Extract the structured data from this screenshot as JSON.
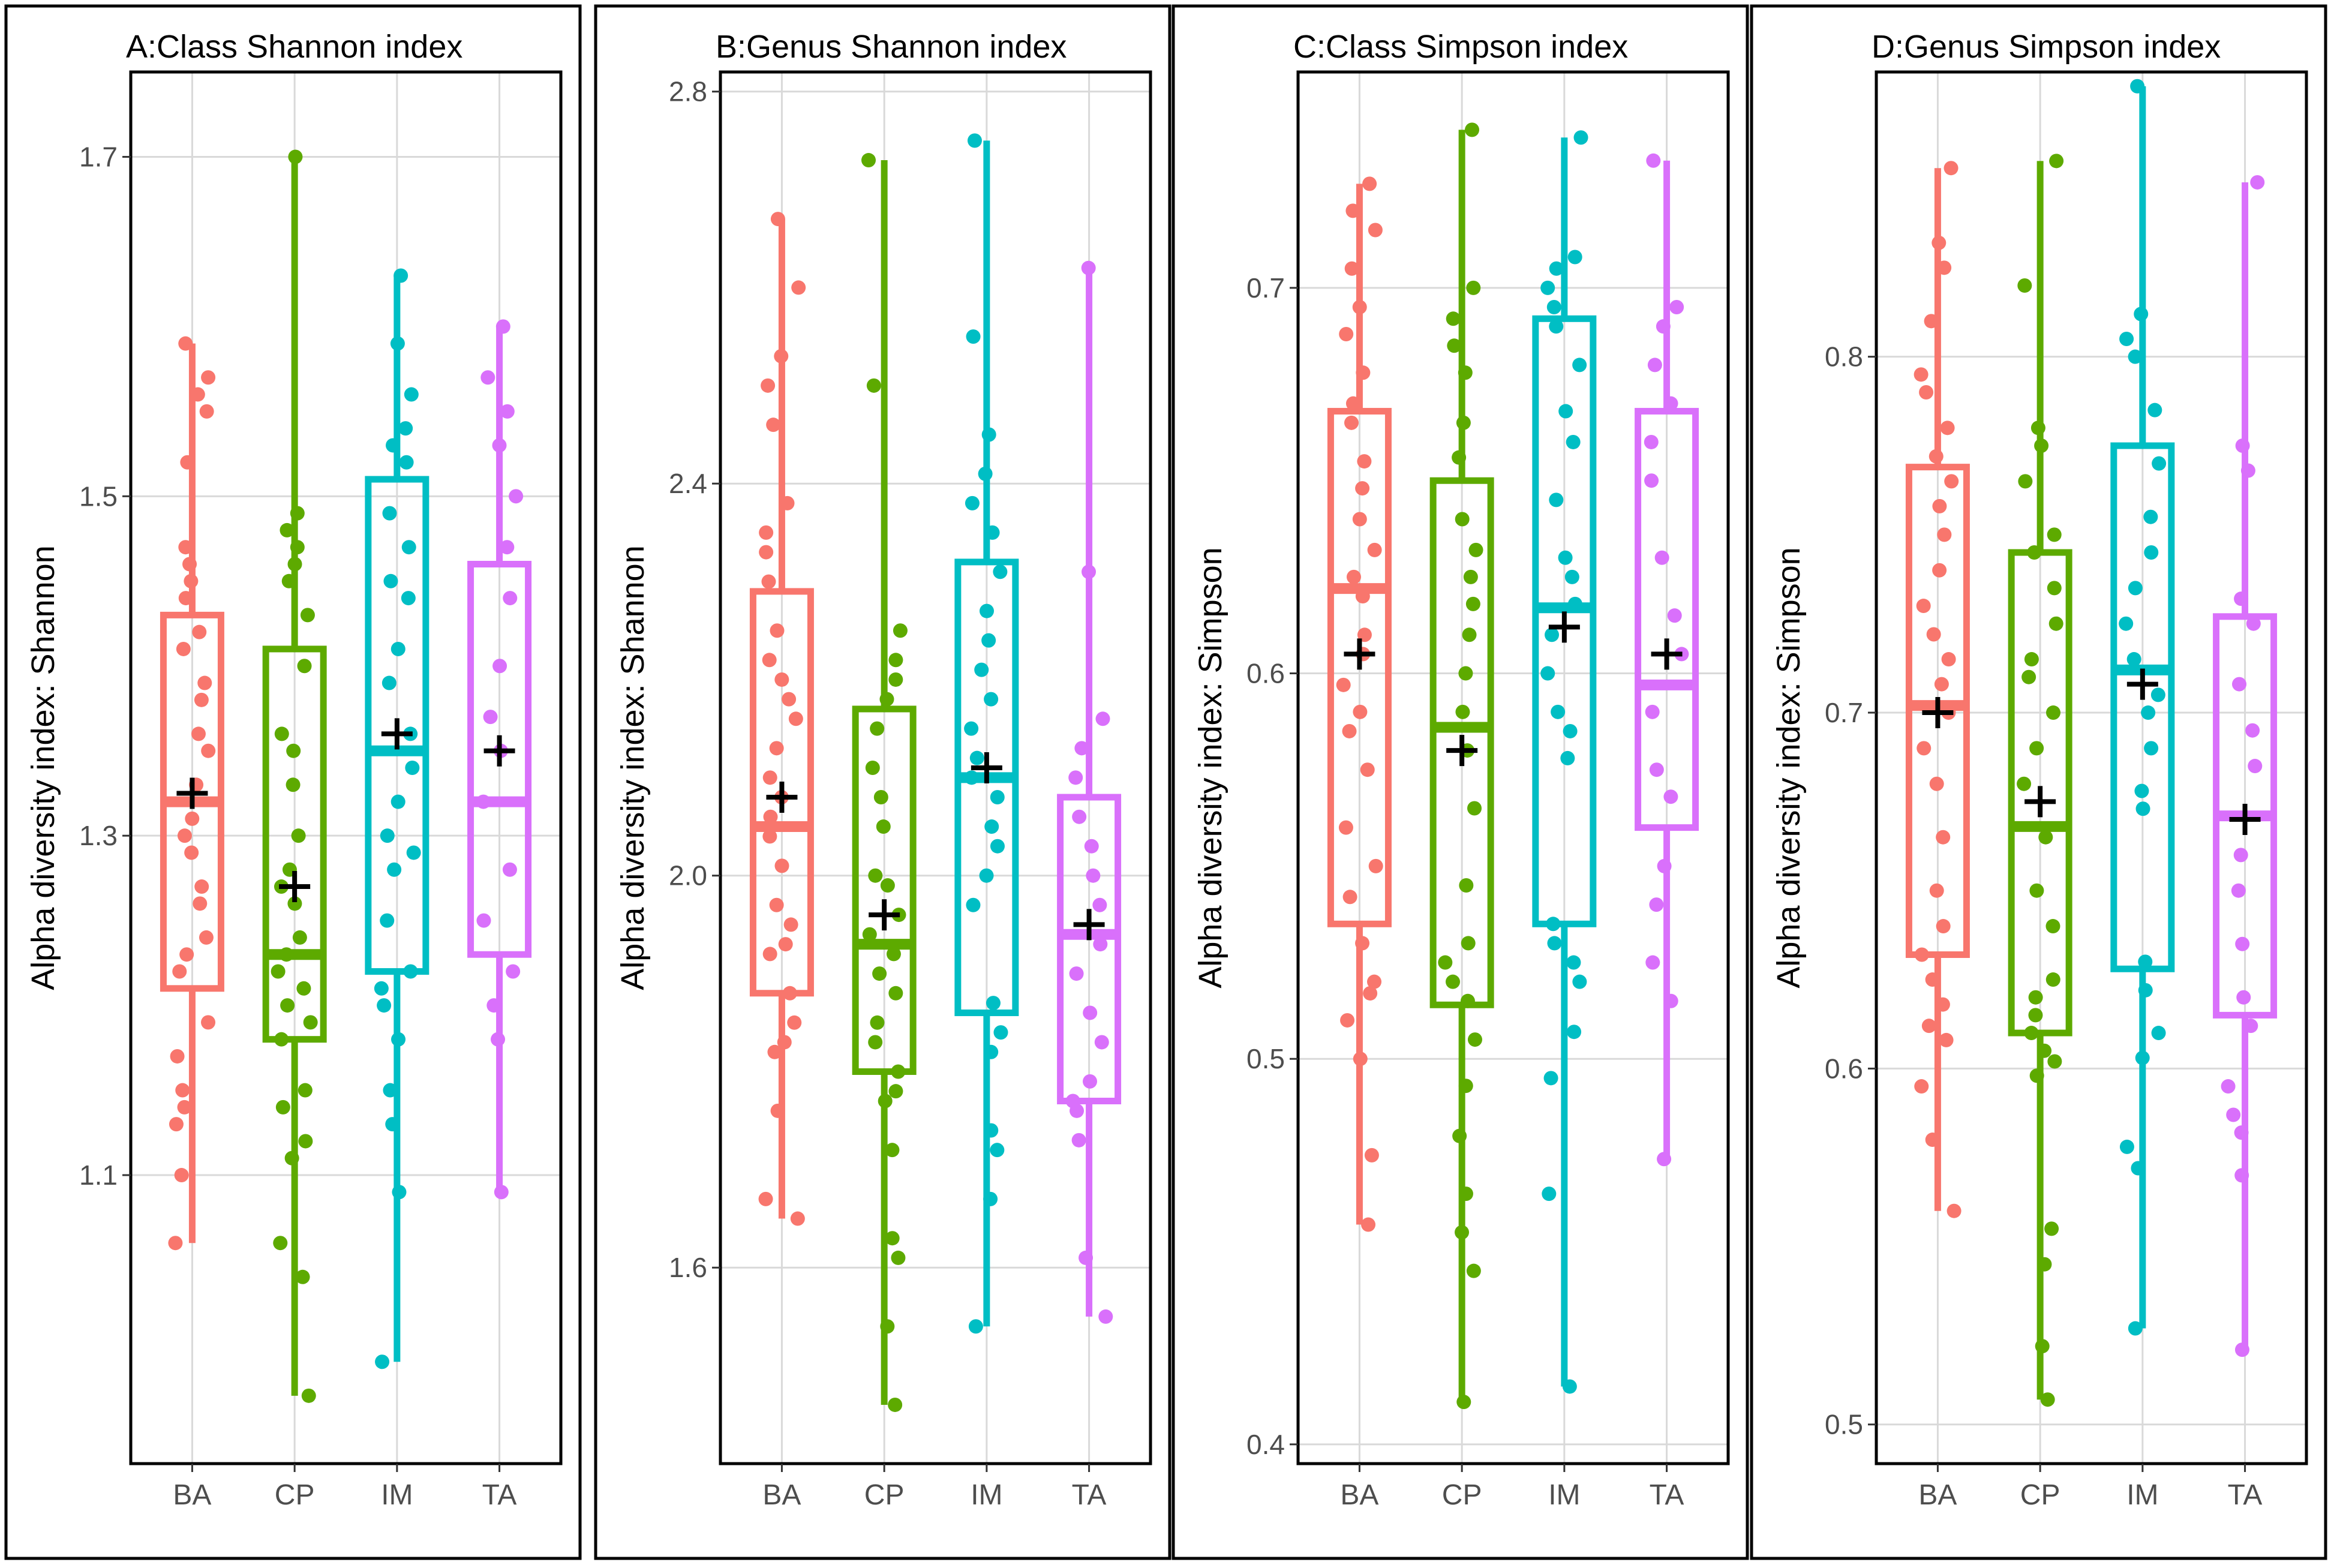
{
  "colors": {
    "BA": "#F8766D",
    "CP": "#5DAA00",
    "IM": "#00BEC4",
    "TA": "#D970FB",
    "mean": "#000000",
    "grid": "#D9D9D9"
  },
  "chart_data": [
    {
      "type": "box",
      "title": "A:Class Shannon index",
      "ylabel": "Alpha diversity index: Shannon",
      "ylim": [
        0.93,
        1.75
      ],
      "yticks": [
        "1.1",
        "1.3",
        "1.5",
        "1.7"
      ],
      "categories": [
        "BA",
        "CP",
        "IM",
        "TA"
      ],
      "boxes": [
        {
          "group": "BA",
          "min": 1.06,
          "q1": 1.21,
          "median": 1.32,
          "q3": 1.43,
          "max": 1.59,
          "mean": 1.325,
          "points": [
            1.06,
            1.1,
            1.13,
            1.14,
            1.15,
            1.17,
            1.19,
            1.22,
            1.23,
            1.24,
            1.26,
            1.27,
            1.29,
            1.3,
            1.31,
            1.33,
            1.35,
            1.36,
            1.38,
            1.39,
            1.41,
            1.42,
            1.44,
            1.45,
            1.46,
            1.47,
            1.52,
            1.55,
            1.56,
            1.57,
            1.59
          ]
        },
        {
          "group": "CP",
          "min": 0.97,
          "q1": 1.18,
          "median": 1.23,
          "q3": 1.41,
          "max": 1.7,
          "mean": 1.27,
          "points": [
            0.97,
            1.04,
            1.06,
            1.11,
            1.12,
            1.14,
            1.15,
            1.18,
            1.19,
            1.2,
            1.21,
            1.22,
            1.23,
            1.24,
            1.26,
            1.27,
            1.28,
            1.3,
            1.33,
            1.35,
            1.36,
            1.4,
            1.43,
            1.45,
            1.46,
            1.47,
            1.48,
            1.49,
            1.7
          ]
        },
        {
          "group": "IM",
          "min": 0.99,
          "q1": 1.22,
          "median": 1.35,
          "q3": 1.51,
          "max": 1.63,
          "mean": 1.36,
          "points": [
            0.99,
            1.09,
            1.13,
            1.15,
            1.18,
            1.2,
            1.21,
            1.22,
            1.25,
            1.28,
            1.29,
            1.3,
            1.32,
            1.34,
            1.36,
            1.39,
            1.41,
            1.44,
            1.45,
            1.47,
            1.49,
            1.52,
            1.53,
            1.54,
            1.56,
            1.59,
            1.63
          ]
        },
        {
          "group": "TA",
          "min": 1.09,
          "q1": 1.23,
          "median": 1.32,
          "q3": 1.46,
          "max": 1.6,
          "mean": 1.35,
          "points": [
            1.09,
            1.18,
            1.2,
            1.22,
            1.25,
            1.28,
            1.32,
            1.35,
            1.37,
            1.4,
            1.44,
            1.47,
            1.5,
            1.53,
            1.55,
            1.57,
            1.6
          ]
        }
      ]
    },
    {
      "type": "box",
      "title": "B:Genus Shannon index",
      "ylabel": "Alpha diversity index: Shannon",
      "ylim": [
        1.4,
        2.82
      ],
      "yticks": [
        "1.6",
        "2.0",
        "2.4",
        "2.8"
      ],
      "categories": [
        "BA",
        "CP",
        "IM",
        "TA"
      ],
      "boxes": [
        {
          "group": "BA",
          "min": 1.65,
          "q1": 1.88,
          "median": 2.05,
          "q3": 2.29,
          "max": 2.67,
          "mean": 2.08,
          "points": [
            1.65,
            1.67,
            1.76,
            1.82,
            1.83,
            1.85,
            1.88,
            1.92,
            1.93,
            1.95,
            1.97,
            2.01,
            2.04,
            2.06,
            2.08,
            2.1,
            2.13,
            2.16,
            2.18,
            2.2,
            2.22,
            2.25,
            2.3,
            2.33,
            2.35,
            2.38,
            2.46,
            2.5,
            2.53,
            2.6,
            2.67
          ]
        },
        {
          "group": "CP",
          "min": 1.46,
          "q1": 1.8,
          "median": 1.93,
          "q3": 2.17,
          "max": 2.73,
          "mean": 1.96,
          "points": [
            1.46,
            1.54,
            1.61,
            1.63,
            1.72,
            1.77,
            1.78,
            1.8,
            1.83,
            1.85,
            1.88,
            1.9,
            1.92,
            1.94,
            1.96,
            1.99,
            2.0,
            2.05,
            2.08,
            2.11,
            2.15,
            2.18,
            2.2,
            2.22,
            2.25,
            2.5,
            2.73
          ]
        },
        {
          "group": "IM",
          "min": 1.54,
          "q1": 1.86,
          "median": 2.1,
          "q3": 2.32,
          "max": 2.75,
          "mean": 2.11,
          "points": [
            1.54,
            1.67,
            1.72,
            1.74,
            1.82,
            1.84,
            1.87,
            1.97,
            2.0,
            2.03,
            2.05,
            2.08,
            2.1,
            2.12,
            2.15,
            2.18,
            2.21,
            2.24,
            2.27,
            2.31,
            2.35,
            2.38,
            2.41,
            2.45,
            2.55,
            2.75
          ]
        },
        {
          "group": "TA",
          "min": 1.55,
          "q1": 1.77,
          "median": 1.94,
          "q3": 2.08,
          "max": 2.62,
          "mean": 1.95,
          "points": [
            1.55,
            1.61,
            1.73,
            1.76,
            1.77,
            1.79,
            1.83,
            1.86,
            1.9,
            1.93,
            1.97,
            2.0,
            2.03,
            2.06,
            2.1,
            2.13,
            2.16,
            2.31,
            2.62
          ]
        }
      ]
    },
    {
      "type": "box",
      "title": "C:Class Simpson index",
      "ylabel": "Alpha diversity index: Simpson",
      "ylim": [
        0.395,
        0.756
      ],
      "yticks": [
        "0.4",
        "0.5",
        "0.6",
        "0.7"
      ],
      "categories": [
        "BA",
        "CP",
        "IM",
        "TA"
      ],
      "boxes": [
        {
          "group": "BA",
          "min": 0.457,
          "q1": 0.535,
          "median": 0.622,
          "q3": 0.668,
          "max": 0.727,
          "mean": 0.605,
          "points": [
            0.457,
            0.475,
            0.5,
            0.51,
            0.517,
            0.52,
            0.53,
            0.542,
            0.55,
            0.56,
            0.575,
            0.585,
            0.59,
            0.597,
            0.605,
            0.61,
            0.62,
            0.625,
            0.632,
            0.64,
            0.648,
            0.655,
            0.665,
            0.67,
            0.678,
            0.688,
            0.695,
            0.705,
            0.715,
            0.72,
            0.727
          ]
        },
        {
          "group": "CP",
          "min": 0.411,
          "q1": 0.514,
          "median": 0.586,
          "q3": 0.65,
          "max": 0.741,
          "mean": 0.58,
          "points": [
            0.411,
            0.445,
            0.455,
            0.465,
            0.48,
            0.493,
            0.505,
            0.515,
            0.52,
            0.525,
            0.53,
            0.545,
            0.565,
            0.58,
            0.59,
            0.6,
            0.61,
            0.618,
            0.625,
            0.632,
            0.64,
            0.656,
            0.665,
            0.678,
            0.685,
            0.692,
            0.7,
            0.741
          ]
        },
        {
          "group": "IM",
          "min": 0.415,
          "q1": 0.535,
          "median": 0.617,
          "q3": 0.692,
          "max": 0.739,
          "mean": 0.612,
          "points": [
            0.415,
            0.465,
            0.495,
            0.507,
            0.52,
            0.525,
            0.53,
            0.535,
            0.578,
            0.585,
            0.59,
            0.6,
            0.61,
            0.618,
            0.625,
            0.63,
            0.645,
            0.66,
            0.668,
            0.68,
            0.69,
            0.695,
            0.7,
            0.705,
            0.708,
            0.739
          ]
        },
        {
          "group": "TA",
          "min": 0.474,
          "q1": 0.56,
          "median": 0.597,
          "q3": 0.668,
          "max": 0.733,
          "mean": 0.605,
          "points": [
            0.474,
            0.515,
            0.525,
            0.54,
            0.55,
            0.568,
            0.575,
            0.59,
            0.605,
            0.615,
            0.63,
            0.65,
            0.66,
            0.67,
            0.68,
            0.69,
            0.695,
            0.733
          ]
        }
      ]
    },
    {
      "type": "box",
      "title": "D:Genus Simpson index",
      "ylabel": "Alpha diversity index: Simpson",
      "ylim": [
        0.489,
        0.88
      ],
      "yticks": [
        "0.5",
        "0.6",
        "0.7",
        "0.8"
      ],
      "categories": [
        "BA",
        "CP",
        "IM",
        "TA"
      ],
      "boxes": [
        {
          "group": "BA",
          "min": 0.56,
          "q1": 0.632,
          "median": 0.702,
          "q3": 0.769,
          "max": 0.853,
          "mean": 0.7,
          "points": [
            0.56,
            0.58,
            0.595,
            0.608,
            0.612,
            0.618,
            0.625,
            0.632,
            0.64,
            0.65,
            0.665,
            0.68,
            0.69,
            0.7,
            0.708,
            0.715,
            0.722,
            0.73,
            0.74,
            0.75,
            0.758,
            0.765,
            0.772,
            0.78,
            0.79,
            0.795,
            0.81,
            0.825,
            0.832,
            0.853
          ]
        },
        {
          "group": "CP",
          "min": 0.507,
          "q1": 0.61,
          "median": 0.668,
          "q3": 0.745,
          "max": 0.855,
          "mean": 0.675,
          "points": [
            0.507,
            0.522,
            0.545,
            0.555,
            0.598,
            0.602,
            0.605,
            0.61,
            0.615,
            0.62,
            0.625,
            0.64,
            0.65,
            0.665,
            0.68,
            0.69,
            0.7,
            0.71,
            0.715,
            0.725,
            0.735,
            0.745,
            0.75,
            0.765,
            0.775,
            0.78,
            0.82,
            0.855
          ]
        },
        {
          "group": "IM",
          "min": 0.527,
          "q1": 0.628,
          "median": 0.712,
          "q3": 0.775,
          "max": 0.876,
          "mean": 0.708,
          "points": [
            0.527,
            0.572,
            0.578,
            0.603,
            0.61,
            0.622,
            0.63,
            0.673,
            0.678,
            0.69,
            0.7,
            0.705,
            0.715,
            0.725,
            0.735,
            0.745,
            0.755,
            0.77,
            0.785,
            0.8,
            0.805,
            0.812,
            0.876
          ]
        },
        {
          "group": "TA",
          "min": 0.521,
          "q1": 0.615,
          "median": 0.671,
          "q3": 0.727,
          "max": 0.849,
          "mean": 0.67,
          "points": [
            0.521,
            0.57,
            0.582,
            0.587,
            0.595,
            0.612,
            0.62,
            0.635,
            0.65,
            0.66,
            0.685,
            0.695,
            0.708,
            0.725,
            0.732,
            0.768,
            0.775,
            0.849
          ]
        }
      ]
    }
  ]
}
